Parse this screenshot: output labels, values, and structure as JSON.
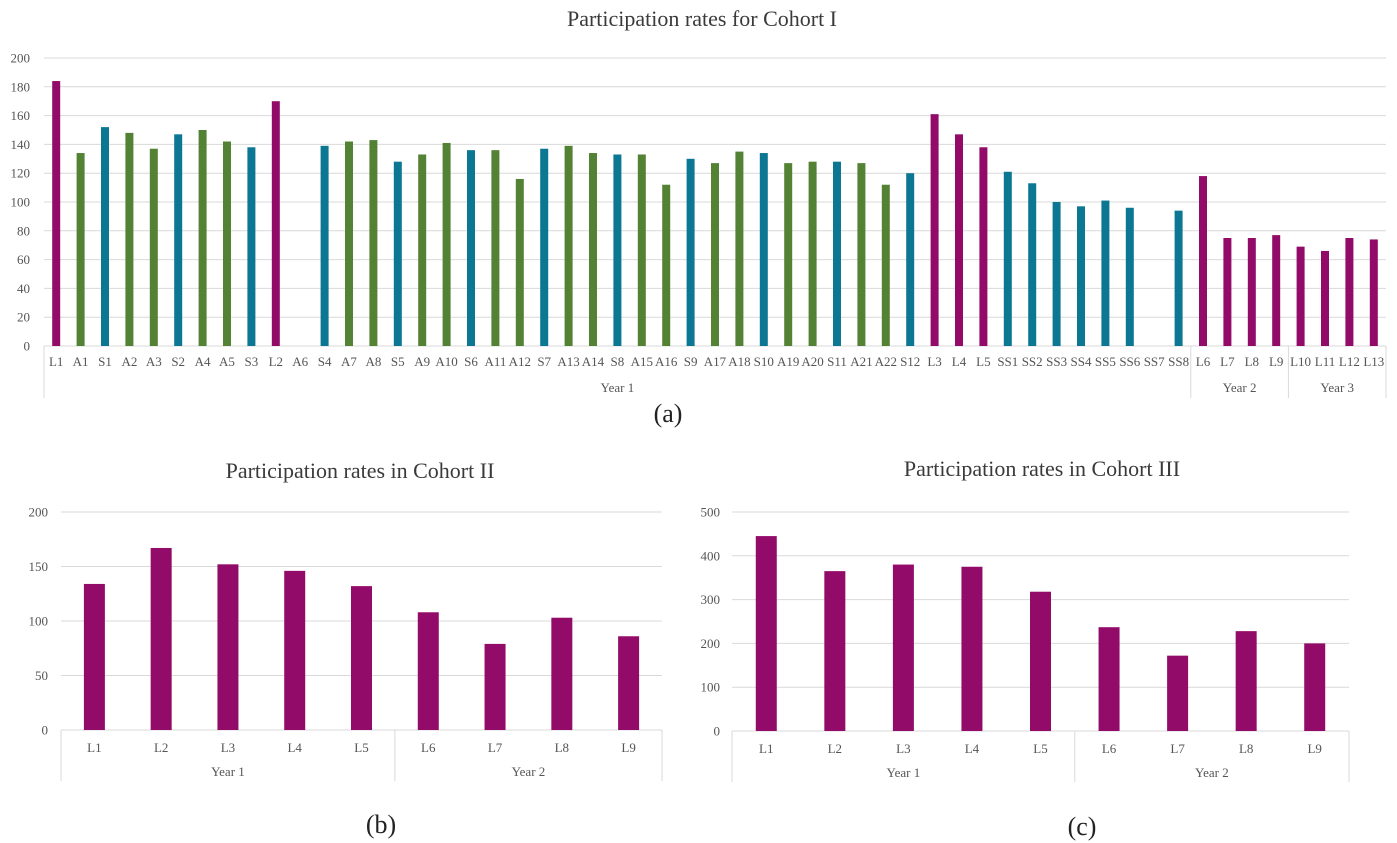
{
  "chart_data": [
    {
      "type": "bar",
      "title": "Participation rates for Cohort I",
      "caption": "(a)",
      "ylim": [
        0,
        200
      ],
      "yticks": [
        0,
        20,
        40,
        60,
        80,
        100,
        120,
        140,
        160,
        180,
        200
      ],
      "categories": [
        "L1",
        "A1",
        "S1",
        "A2",
        "A3",
        "S2",
        "A4",
        "A5",
        "S3",
        "L2",
        "A6",
        "S4",
        "A7",
        "A8",
        "S5",
        "A9",
        "A10",
        "S6",
        "A11",
        "A12",
        "S7",
        "A13",
        "A14",
        "S8",
        "A15",
        "A16",
        "S9",
        "A17",
        "A18",
        "S10",
        "A19",
        "A20",
        "S11",
        "A21",
        "A22",
        "S12",
        "L3",
        "L4",
        "L5",
        "SS1",
        "SS2",
        "SS3",
        "SS4",
        "SS5",
        "SS6",
        "SS7",
        "SS8",
        "L6",
        "L7",
        "L8",
        "L9",
        "L10",
        "L11",
        "L12",
        "L13"
      ],
      "values": [
        184,
        134,
        152,
        148,
        137,
        147,
        150,
        142,
        138,
        170,
        0,
        139,
        142,
        143,
        128,
        133,
        141,
        136,
        136,
        116,
        137,
        139,
        134,
        133,
        133,
        112,
        130,
        127,
        135,
        134,
        127,
        128,
        128,
        127,
        112,
        120,
        161,
        147,
        138,
        121,
        113,
        100,
        97,
        101,
        96,
        0,
        94,
        118,
        75,
        75,
        77,
        69,
        66,
        75,
        74
      ],
      "bar_types": [
        "L",
        "A",
        "S",
        "A",
        "A",
        "S",
        "A",
        "A",
        "S",
        "L",
        "A",
        "S",
        "A",
        "A",
        "S",
        "A",
        "A",
        "S",
        "A",
        "A",
        "S",
        "A",
        "A",
        "S",
        "A",
        "A",
        "S",
        "A",
        "A",
        "S",
        "A",
        "A",
        "S",
        "A",
        "A",
        "S",
        "L",
        "L",
        "L",
        "S",
        "S",
        "S",
        "S",
        "S",
        "S",
        "S",
        "S",
        "L",
        "L",
        "L",
        "L",
        "L",
        "L",
        "L",
        "L"
      ],
      "colors": {
        "L": "#930B69",
        "A": "#548235",
        "S": "#0B7793"
      },
      "groups": [
        {
          "label": "Year 1",
          "start": 0,
          "end": 46
        },
        {
          "label": "Year 2",
          "start": 47,
          "end": 50
        },
        {
          "label": "Year 3",
          "start": 51,
          "end": 54
        }
      ]
    },
    {
      "type": "bar",
      "title": "Participation rates in Cohort II",
      "caption": "(b)",
      "ylim": [
        0,
        200
      ],
      "yticks": [
        0,
        50,
        100,
        150,
        200
      ],
      "categories": [
        "L1",
        "L2",
        "L3",
        "L4",
        "L5",
        "L6",
        "L7",
        "L8",
        "L9"
      ],
      "values": [
        134,
        167,
        152,
        146,
        132,
        108,
        79,
        103,
        86
      ],
      "color": "#930B69",
      "groups": [
        {
          "label": "Year 1",
          "start": 0,
          "end": 4
        },
        {
          "label": "Year 2",
          "start": 5,
          "end": 8
        }
      ]
    },
    {
      "type": "bar",
      "title": "Participation rates in Cohort III",
      "caption": "(c)",
      "ylim": [
        0,
        500
      ],
      "yticks": [
        0,
        100,
        200,
        300,
        400,
        500
      ],
      "categories": [
        "L1",
        "L2",
        "L3",
        "L4",
        "L5",
        "L6",
        "L7",
        "L8",
        "L9"
      ],
      "values": [
        445,
        365,
        380,
        375,
        318,
        237,
        172,
        228,
        200
      ],
      "color": "#930B69",
      "groups": [
        {
          "label": "Year 1",
          "start": 0,
          "end": 4
        },
        {
          "label": "Year 2",
          "start": 5,
          "end": 8
        }
      ]
    }
  ]
}
